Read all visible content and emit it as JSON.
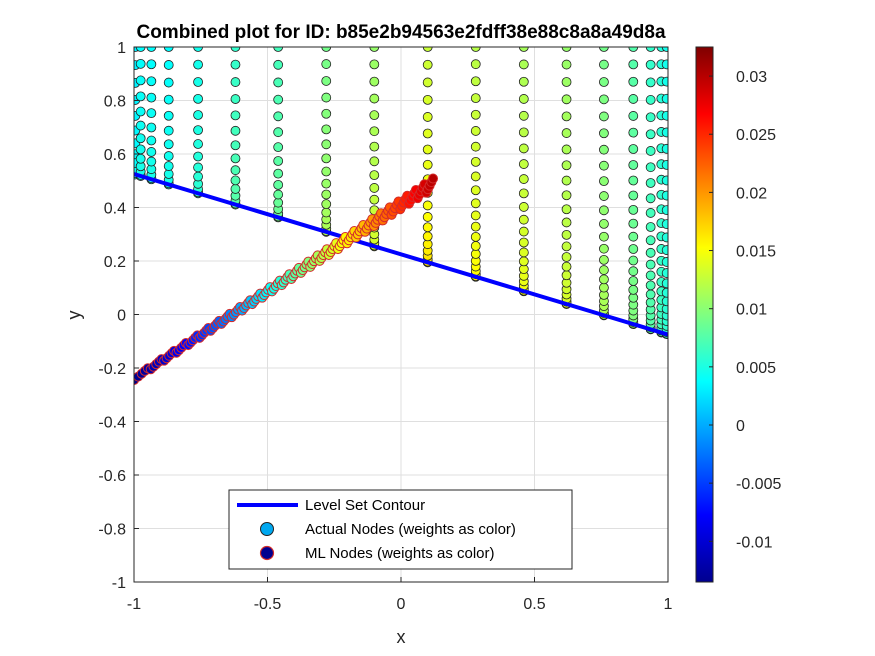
{
  "chart_data": {
    "type": "scatter",
    "title": "Combined plot for ID: b85e2b94563e2fdff38e88c8a8a49d8a",
    "xlabel": "x",
    "ylabel": "y",
    "xlim": [
      -1,
      1
    ],
    "ylim": [
      -1,
      1
    ],
    "xticks": [
      "-1",
      "-0.5",
      "0",
      "0.5",
      "1"
    ],
    "yticks": [
      "-1",
      "-0.8",
      "-0.6",
      "-0.4",
      "-0.2",
      "0",
      "0.2",
      "0.4",
      "0.6",
      "0.8",
      "1"
    ],
    "grid": true,
    "colormap": "jet",
    "colorbar": {
      "range": [
        -0.0135,
        0.0325
      ],
      "ticks": [
        "-0.01",
        "-0.005",
        "0",
        "0.005",
        "0.01",
        "0.015",
        "0.02",
        "0.025",
        "0.03"
      ]
    },
    "legend": {
      "placement": "bottom-center",
      "entries": [
        "Level Set Contour",
        "Actual Nodes (weights as color)",
        "ML Nodes (weights as color)"
      ]
    },
    "level_set_line": {
      "x": [
        -1,
        1
      ],
      "y": [
        0.525,
        -0.075
      ],
      "color": "#0000ff"
    },
    "actual_nodes_columns": [
      {
        "x": -0.995,
        "w": 0.004
      },
      {
        "x": -0.975,
        "w": 0.005
      },
      {
        "x": -0.935,
        "w": 0.005
      },
      {
        "x": -0.87,
        "w": 0.005
      },
      {
        "x": -0.76,
        "w": 0.006
      },
      {
        "x": -0.62,
        "w": 0.008
      },
      {
        "x": -0.46,
        "w": 0.009
      },
      {
        "x": -0.28,
        "w": 0.012
      },
      {
        "x": -0.1,
        "w": 0.014
      },
      {
        "x": 0.1,
        "w": 0.017
      },
      {
        "x": 0.28,
        "w": 0.016
      },
      {
        "x": 0.46,
        "w": 0.015
      },
      {
        "x": 0.62,
        "w": 0.014
      },
      {
        "x": 0.76,
        "w": 0.012
      },
      {
        "x": 0.87,
        "w": 0.01
      },
      {
        "x": 0.935,
        "w": 0.008
      },
      {
        "x": 0.975,
        "w": 0.007
      },
      {
        "x": 0.995,
        "w": 0.006
      }
    ],
    "ml_nodes": {
      "x_start": -1.0,
      "y_start": -0.24,
      "x_end": 0.12,
      "y_end": 0.49,
      "w_start": -0.013,
      "w_end": 0.03
    }
  }
}
